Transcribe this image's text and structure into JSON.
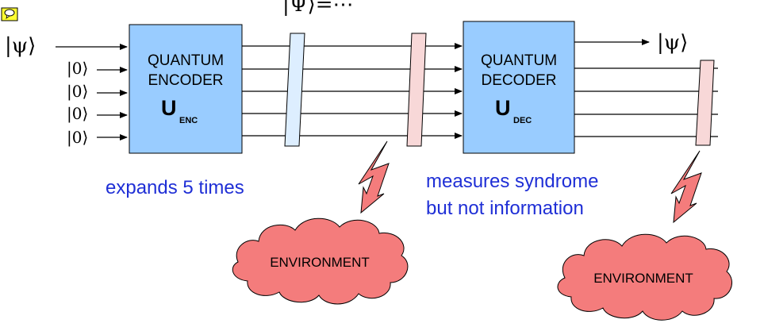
{
  "diagram": {
    "comment_icon": "speech-bubble-icon",
    "input_state": "|ψ⟩",
    "output_state": "|ψ⟩",
    "middle_state": "|Ψ⟩=⋯",
    "ancilla_labels": [
      "|0⟩",
      "|0⟩",
      "|0⟩",
      "|0⟩"
    ],
    "encoder": {
      "line1": "QUANTUM",
      "line2": "ENCODER",
      "op": "U",
      "op_sub": "ENC"
    },
    "decoder": {
      "line1": "QUANTUM",
      "line2": "DECODER",
      "op": "U",
      "op_sub": "DEC"
    },
    "notes": {
      "expands": "expands 5 times",
      "measures_line1": "measures syndrome",
      "measures_line2": "but not information"
    },
    "environment_left": "ENVIRONMENT",
    "environment_right": "ENVIRONMENT",
    "colors": {
      "box_fill": "#99ccff",
      "note_text": "#1f2fd6",
      "cloud_fill": "#f47c7c",
      "bolt_fill": "#f47c7c",
      "noise_bar_blue": "#ddeeff",
      "noise_bar_pink": "#f8d8d8",
      "icon_fill": "#ffff33"
    }
  }
}
